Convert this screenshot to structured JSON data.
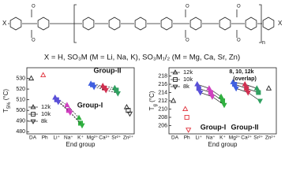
{
  "structure": {
    "left_group": "X",
    "right_group": "X",
    "repeat": "n",
    "oxygen": "O"
  },
  "caption": "X = H, SO₃M (M = Li, Na, K), SO₃M₁/₂ (M = Mg, Ca, Sr, Zn)",
  "chart_data": [
    {
      "type": "line",
      "y_label": [
        "T",
        "5%",
        " (°C)"
      ],
      "x_label": "End group",
      "categories": [
        "DA",
        "Ph",
        "Li⁺",
        "Na⁺",
        "K⁺",
        "Mg²⁺",
        "Ca²⁺",
        "Sr²⁺",
        "Zn²⁺"
      ],
      "category_colors": [
        "#222222",
        "#e0303a",
        "#5a50d8",
        "#d040c0",
        "#30b040",
        "#4060e0",
        "#d03050",
        "#30a060",
        "#222222"
      ],
      "line_style": "dashed",
      "series": [
        {
          "name": "12k",
          "marker": "triangle-up",
          "values": [
            530,
            533,
            512,
            505,
            493,
            525,
            523,
            521,
            503
          ]
        },
        {
          "name": "10k",
          "marker": "square",
          "values": [
            null,
            null,
            510,
            500,
            488,
            524,
            521,
            519,
            500
          ]
        },
        {
          "name": "8k",
          "marker": "triangle-down",
          "values": [
            null,
            null,
            508,
            498,
            486,
            522,
            519,
            516,
            497
          ]
        }
      ],
      "ylim": [
        478,
        540
      ],
      "yticks": [
        480,
        490,
        500,
        510,
        520,
        530
      ],
      "annotations": [
        "Group-I",
        "Group-II"
      ]
    },
    {
      "type": "line",
      "y_label": [
        "T",
        "g",
        " (°C)"
      ],
      "x_label": "End group",
      "categories": [
        "DA",
        "Ph",
        "Li⁺",
        "Na⁺",
        "K⁺",
        "Mg²⁺",
        "Ca²⁺",
        "Sr²⁺",
        "Zn²⁺"
      ],
      "category_colors": [
        "#222222",
        "#e0303a",
        "#5a50d8",
        "#d040c0",
        "#30b040",
        "#4060e0",
        "#d03050",
        "#30a060",
        "#222222"
      ],
      "line_style": "solid",
      "series": [
        {
          "name": "12k",
          "marker": "triangle-up",
          "values": [
            212,
            210,
            216,
            215,
            213,
            216.5,
            216,
            215,
            215
          ]
        },
        {
          "name": "10k",
          "marker": "square",
          "values": [
            null,
            208,
            215,
            214,
            212,
            216,
            215,
            214,
            null
          ]
        },
        {
          "name": "8k",
          "marker": "triangle-down",
          "values": [
            null,
            205,
            214,
            213,
            211,
            215,
            214,
            212,
            null
          ]
        }
      ],
      "ylim": [
        204,
        220
      ],
      "yticks": [
        206,
        208,
        210,
        212,
        214,
        216,
        218
      ],
      "annotations": [
        "Group-I",
        "Group-II",
        "8, 10, 12k",
        "(overlap)"
      ]
    }
  ]
}
